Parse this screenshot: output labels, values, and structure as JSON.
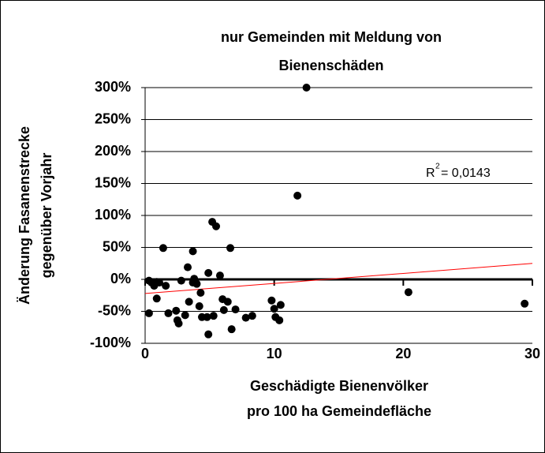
{
  "chart_data": {
    "type": "scatter",
    "title": [
      "nur Gemeinden mit Meldung von",
      "Bienenschäden"
    ],
    "y_label": [
      "Änderung Fasanenstrecke",
      "gegenüber Vorjahr"
    ],
    "x_label": [
      "Geschädigte Bienenvölker",
      "pro 100 ha Gemeindefläche"
    ],
    "color": "#000000",
    "x": [
      0.3,
      0.3,
      0.5,
      0.7,
      0.9,
      0.9,
      1.1,
      1.4,
      1.6,
      1.8,
      2.4,
      2.5,
      2.6,
      2.8,
      3.1,
      3.3,
      3.4,
      3.7,
      3.7,
      3.8,
      4.0,
      4.2,
      4.3,
      4.4,
      4.8,
      4.9,
      4.9,
      5.2,
      5.3,
      5.5,
      5.8,
      6.0,
      6.1,
      6.4,
      6.6,
      6.7,
      7.0,
      7.8,
      8.3,
      9.8,
      10.0,
      10.1,
      10.4,
      10.5,
      11.8,
      12.5,
      20.4,
      29.4
    ],
    "values": [
      -2,
      -53,
      -5,
      -10,
      -4,
      -30,
      -5,
      49,
      -10,
      -53,
      -49,
      -64,
      -69,
      -2,
      -56,
      19,
      -35,
      -5,
      44,
      1,
      -7,
      -42,
      -21,
      -59,
      -59,
      10,
      -86,
      90,
      -57,
      83,
      6,
      -31,
      -48,
      -35,
      49,
      -78,
      -47,
      -60,
      -57,
      -33,
      -46,
      -59,
      -64,
      -40,
      131,
      300,
      -20,
      -38
    ],
    "trendline": {
      "x": [
        0,
        30
      ],
      "values": [
        -22,
        25
      ],
      "color": "#ff0000"
    },
    "r_squared": {
      "label": "R",
      "superscript": "2",
      "value": "= 0,0143"
    },
    "xlim": [
      0,
      30
    ],
    "xticks": [
      0,
      10,
      20,
      30
    ],
    "ylim": [
      -100,
      300
    ],
    "yticks": [
      {
        "value": -100,
        "label": "-100%"
      },
      {
        "value": -50,
        "label": "-50%"
      },
      {
        "value": 0,
        "label": "0%"
      },
      {
        "value": 50,
        "label": "50%"
      },
      {
        "value": 100,
        "label": "100%"
      },
      {
        "value": 150,
        "label": "150%"
      },
      {
        "value": 200,
        "label": "200%"
      },
      {
        "value": 250,
        "label": "250%"
      },
      {
        "value": 300,
        "label": "300%"
      }
    ],
    "grid": true
  }
}
